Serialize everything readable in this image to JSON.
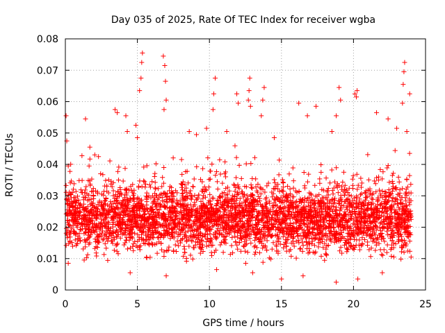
{
  "chart_data": {
    "type": "scatter",
    "title": "Day 035 of 2025, Rate Of TEC Index for receiver wgba",
    "xlabel": "GPS time / hours",
    "ylabel": "ROTI / TECUs",
    "xlim": [
      0,
      25
    ],
    "ylim": [
      0,
      0.08
    ],
    "x_ticks": [
      "0",
      "5",
      "10",
      "15",
      "20",
      "25"
    ],
    "y_ticks": [
      "0",
      "0.01",
      "0.02",
      "0.03",
      "0.04",
      "0.05",
      "0.06",
      "0.07",
      "0.08"
    ],
    "grid": true,
    "marker": "plus",
    "color": "#ff0000",
    "data_x_range": [
      0,
      24
    ],
    "typical_range": [
      0.008,
      0.035
    ],
    "points": [
      [
        0.05,
        0.0555
      ],
      [
        0.1,
        0.0475
      ],
      [
        0.2,
        0.0395
      ],
      [
        0.4,
        0.0305
      ],
      [
        1.4,
        0.0545
      ],
      [
        1.7,
        0.0455
      ],
      [
        2.3,
        0.0425
      ],
      [
        3.45,
        0.0575
      ],
      [
        3.6,
        0.0565
      ],
      [
        4.2,
        0.0555
      ],
      [
        4.3,
        0.0505
      ],
      [
        4.9,
        0.0525
      ],
      [
        5.0,
        0.0485
      ],
      [
        5.15,
        0.0635
      ],
      [
        5.25,
        0.0675
      ],
      [
        5.3,
        0.0725
      ],
      [
        5.35,
        0.0755
      ],
      [
        6.8,
        0.0745
      ],
      [
        6.9,
        0.0715
      ],
      [
        6.95,
        0.0665
      ],
      [
        7.0,
        0.0605
      ],
      [
        6.85,
        0.0575
      ],
      [
        8.6,
        0.0505
      ],
      [
        9.1,
        0.0495
      ],
      [
        9.8,
        0.0515
      ],
      [
        10.25,
        0.0575
      ],
      [
        10.3,
        0.0625
      ],
      [
        10.4,
        0.0675
      ],
      [
        11.2,
        0.0505
      ],
      [
        11.9,
        0.0625
      ],
      [
        12.0,
        0.0595
      ],
      [
        12.7,
        0.0605
      ],
      [
        12.75,
        0.0635
      ],
      [
        12.8,
        0.0675
      ],
      [
        12.85,
        0.0585
      ],
      [
        13.6,
        0.0555
      ],
      [
        13.7,
        0.0605
      ],
      [
        13.8,
        0.0645
      ],
      [
        14.5,
        0.0485
      ],
      [
        16.2,
        0.0595
      ],
      [
        16.8,
        0.0555
      ],
      [
        17.4,
        0.0585
      ],
      [
        18.5,
        0.0505
      ],
      [
        18.8,
        0.0555
      ],
      [
        19.0,
        0.0645
      ],
      [
        19.1,
        0.0605
      ],
      [
        20.1,
        0.0625
      ],
      [
        20.2,
        0.0615
      ],
      [
        20.25,
        0.0635
      ],
      [
        21.6,
        0.0565
      ],
      [
        22.4,
        0.0545
      ],
      [
        23.0,
        0.0515
      ],
      [
        23.4,
        0.0595
      ],
      [
        23.45,
        0.0655
      ],
      [
        23.5,
        0.0695
      ],
      [
        23.55,
        0.0725
      ],
      [
        23.9,
        0.0625
      ],
      [
        23.7,
        0.0505
      ],
      [
        7.0,
        0.0045
      ],
      [
        15.0,
        0.0035
      ],
      [
        18.8,
        0.0025
      ],
      [
        20.3,
        0.0035
      ],
      [
        0.2,
        0.0085
      ],
      [
        4.5,
        0.0055
      ],
      [
        10.5,
        0.0065
      ],
      [
        13.0,
        0.0055
      ],
      [
        16.5,
        0.0045
      ],
      [
        22.0,
        0.0055
      ],
      [
        24.0,
        0.0105
      ],
      [
        24.0,
        0.0225
      ]
    ]
  }
}
